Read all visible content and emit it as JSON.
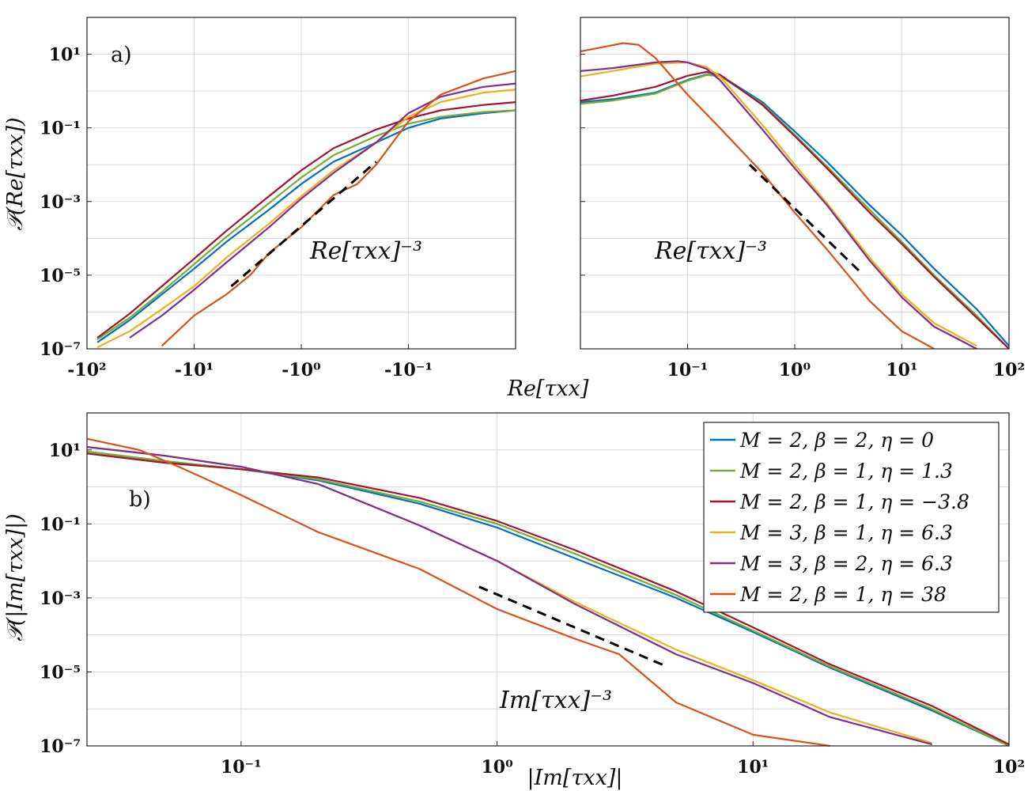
{
  "chart_data": [
    {
      "panel": "a-left",
      "type": "line",
      "panel_label": "a)",
      "ylabel": "𝒫(Re[τxx])",
      "xlabel": "Re[τxx]",
      "xscale": "log-negative",
      "yscale": "log",
      "xlim": [
        -100,
        -0.01
      ],
      "ylim": [
        1e-07,
        100
      ],
      "xticks": [
        "-10²",
        "-10¹",
        "-10⁰",
        "-10⁻¹"
      ],
      "yticks": [
        "10⁻⁷",
        "10⁻⁵",
        "10⁻³",
        "10⁻¹",
        "10¹"
      ],
      "grid": true,
      "annotation": "Re[τxx]⁻³",
      "reference_line": {
        "label": "Re[τxx]⁻³",
        "x": [
          -4.5,
          -0.2
        ],
        "y": [
          5e-06,
          0.012
        ]
      },
      "series": [
        {
          "name": "M=2, β=2, η=0",
          "x": [
            -80,
            -40,
            -20,
            -10,
            -5,
            -2,
            -1,
            -0.5,
            -0.2,
            -0.1,
            -0.05,
            -0.02,
            -0.01
          ],
          "y": [
            1.5e-07,
            6e-07,
            3e-06,
            1.5e-05,
            8e-05,
            0.0006,
            0.003,
            0.012,
            0.04,
            0.1,
            0.18,
            0.25,
            0.3
          ]
        },
        {
          "name": "M=2, β=1, η=1.3",
          "x": [
            -80,
            -40,
            -20,
            -10,
            -5,
            -2,
            -1,
            -0.5,
            -0.2,
            -0.1,
            -0.05,
            -0.02,
            -0.01
          ],
          "y": [
            1.8e-07,
            7e-07,
            3.5e-06,
            2e-05,
            0.00011,
            0.0009,
            0.0045,
            0.018,
            0.06,
            0.13,
            0.2,
            0.27,
            0.3
          ]
        },
        {
          "name": "M=2, β=1, η=−3.8",
          "x": [
            -80,
            -40,
            -20,
            -10,
            -5,
            -2,
            -1,
            -0.5,
            -0.2,
            -0.1,
            -0.05,
            -0.02,
            -0.01
          ],
          "y": [
            2e-07,
            9e-07,
            5e-06,
            2.8e-05,
            0.00016,
            0.0014,
            0.007,
            0.028,
            0.09,
            0.18,
            0.3,
            0.42,
            0.5
          ]
        },
        {
          "name": "M=3, β=1, η=6.3",
          "x": [
            -80,
            -40,
            -20,
            -10,
            -5,
            -2,
            -1,
            -0.5,
            -0.2,
            -0.1,
            -0.05,
            -0.02,
            -0.01
          ],
          "y": [
            1.1e-07,
            3e-07,
            1.2e-06,
            5e-06,
            3e-05,
            0.00025,
            0.0014,
            0.007,
            0.04,
            0.2,
            0.5,
            0.9,
            1.1
          ]
        },
        {
          "name": "M=3, β=2, η=6.3",
          "x": [
            -40,
            -20,
            -10,
            -5,
            -2,
            -1,
            -0.5,
            -0.2,
            -0.1,
            -0.05,
            -0.02,
            -0.01
          ],
          "y": [
            2e-07,
            8e-07,
            4e-06,
            2.2e-05,
            0.0002,
            0.0012,
            0.006,
            0.04,
            0.25,
            0.7,
            1.3,
            1.6
          ]
        },
        {
          "name": "M=2, β=1, η=38",
          "x": [
            -20,
            -10,
            -5,
            -3,
            -2,
            -1,
            -0.5,
            -0.3,
            -0.2,
            -0.1,
            -0.05,
            -0.02,
            -0.01
          ],
          "y": [
            1.2e-07,
            8e-07,
            3e-06,
            1e-05,
            4e-05,
            0.0002,
            0.0015,
            0.003,
            0.01,
            0.15,
            0.8,
            2.2,
            3.5
          ]
        }
      ]
    },
    {
      "panel": "a-right",
      "type": "line",
      "xscale": "log",
      "yscale": "log",
      "xlim": [
        0.01,
        100
      ],
      "ylim": [
        1e-07,
        100
      ],
      "xticks": [
        "10⁻¹",
        "10⁰",
        "10¹",
        "10²"
      ],
      "grid": true,
      "annotation": "Re[τxx]⁻³",
      "reference_line": {
        "label": "Re[τxx]⁻³",
        "x": [
          0.38,
          4.0
        ],
        "y": [
          0.01,
          1.3e-05
        ]
      },
      "series": [
        {
          "name": "M=2, β=2, η=0",
          "x": [
            0.01,
            0.02,
            0.05,
            0.1,
            0.15,
            0.2,
            0.5,
            1,
            2,
            5,
            10,
            20,
            50,
            100
          ],
          "y": [
            0.5,
            0.6,
            0.9,
            2.0,
            2.8,
            2.7,
            0.5,
            0.08,
            0.012,
            0.0008,
            0.00012,
            1.5e-05,
            1.2e-06,
            1.2e-07
          ]
        },
        {
          "name": "M=2, β=1, η=1.3",
          "x": [
            0.01,
            0.02,
            0.05,
            0.1,
            0.15,
            0.2,
            0.5,
            1,
            2,
            5,
            10,
            20,
            50,
            100
          ],
          "y": [
            0.45,
            0.55,
            0.85,
            1.9,
            2.7,
            2.6,
            0.45,
            0.065,
            0.009,
            0.0006,
            8e-05,
            1e-05,
            8e-07,
            1e-07
          ]
        },
        {
          "name": "M=2, β=1, η=−3.8",
          "x": [
            0.01,
            0.02,
            0.05,
            0.1,
            0.15,
            0.2,
            0.5,
            1,
            2,
            5,
            10,
            20,
            50,
            100
          ],
          "y": [
            0.55,
            0.75,
            1.3,
            2.6,
            3.3,
            2.8,
            0.42,
            0.06,
            0.008,
            0.0005,
            7e-05,
            9e-06,
            7e-07,
            1e-07
          ]
        },
        {
          "name": "M=3, β=1, η=6.3",
          "x": [
            0.01,
            0.02,
            0.05,
            0.1,
            0.15,
            0.2,
            0.5,
            1,
            2,
            5,
            10,
            20,
            50
          ],
          "y": [
            2.5,
            3.5,
            5.5,
            6,
            4.5,
            2.5,
            0.12,
            0.01,
            0.0009,
            3e-05,
            3e-06,
            5e-07,
            1.2e-07
          ]
        },
        {
          "name": "M=3, β=2, η=6.3",
          "x": [
            0.01,
            0.02,
            0.05,
            0.08,
            0.1,
            0.15,
            0.2,
            0.5,
            1,
            2,
            5,
            10,
            20,
            50
          ],
          "y": [
            3.5,
            4.2,
            6,
            6.5,
            6,
            4,
            2,
            0.09,
            0.008,
            0.0008,
            2.5e-05,
            2.5e-06,
            4e-07,
            1e-07
          ]
        },
        {
          "name": "M=2, β=1, η=38",
          "x": [
            0.01,
            0.015,
            0.025,
            0.035,
            0.05,
            0.1,
            0.2,
            0.5,
            1,
            2,
            5,
            10,
            20
          ],
          "y": [
            12,
            15,
            20,
            18,
            8,
            0.8,
            0.1,
            0.006,
            0.0005,
            5e-05,
            2e-06,
            3e-07,
            1e-07
          ]
        }
      ]
    },
    {
      "panel": "b",
      "type": "line",
      "panel_label": "b)",
      "ylabel": "𝒫(|Im[τxx]|)",
      "xlabel": "|Im[τxx]|",
      "xscale": "log",
      "yscale": "log",
      "xlim": [
        0.025,
        100
      ],
      "ylim": [
        1e-07,
        100
      ],
      "xticks": [
        "10⁻¹",
        "10⁰",
        "10¹",
        "10²"
      ],
      "yticks": [
        "10⁻⁷",
        "10⁻⁵",
        "10⁻³",
        "10⁻¹",
        "10¹"
      ],
      "grid": true,
      "annotation": "Im[τxx]⁻³",
      "legend_placement": "top-right",
      "reference_line": {
        "label": "Im[τxx]⁻³",
        "x": [
          0.85,
          4.6
        ],
        "y": [
          0.002,
          1.4e-05
        ]
      },
      "series": [
        {
          "name": "M=2, β=2, η=0",
          "x": [
            0.025,
            0.05,
            0.1,
            0.2,
            0.5,
            1,
            2,
            5,
            10,
            20,
            50,
            100
          ],
          "y": [
            9,
            5,
            3,
            1.5,
            0.35,
            0.08,
            0.012,
            0.001,
            0.00012,
            1.3e-05,
            9e-07,
            9e-08
          ]
        },
        {
          "name": "M=2, β=1, η=1.3",
          "x": [
            0.025,
            0.05,
            0.1,
            0.2,
            0.5,
            1,
            2,
            5,
            10,
            20,
            50,
            100
          ],
          "y": [
            9,
            5,
            3,
            1.6,
            0.4,
            0.1,
            0.016,
            0.0012,
            0.00013,
            1.4e-05,
            1e-06,
            1e-07
          ]
        },
        {
          "name": "M=2, β=1, η=−3.8",
          "x": [
            0.025,
            0.05,
            0.1,
            0.2,
            0.5,
            1,
            2,
            5,
            10,
            20,
            50,
            100
          ],
          "y": [
            8,
            4.5,
            3,
            1.8,
            0.5,
            0.12,
            0.02,
            0.0015,
            0.00016,
            1.6e-05,
            1.2e-06,
            1.1e-07
          ]
        },
        {
          "name": "M=3, β=1, η=6.3",
          "x": [
            0.025,
            0.05,
            0.1,
            0.2,
            0.5,
            1,
            2,
            5,
            10,
            20,
            50
          ],
          "y": [
            12,
            7,
            3.5,
            1.2,
            0.09,
            0.01,
            0.0008,
            4e-05,
            6e-06,
            8e-07,
            1.2e-07
          ]
        },
        {
          "name": "M=3, β=2, η=6.3",
          "x": [
            0.025,
            0.05,
            0.1,
            0.2,
            0.5,
            1,
            2,
            5,
            10,
            20,
            50
          ],
          "y": [
            12,
            7,
            3.5,
            1.2,
            0.09,
            0.01,
            0.0007,
            3e-05,
            5e-06,
            6e-07,
            1.1e-07
          ]
        },
        {
          "name": "M=2, β=1, η=38",
          "x": [
            0.025,
            0.04,
            0.06,
            0.1,
            0.2,
            0.5,
            1,
            2,
            3,
            5,
            10,
            20
          ],
          "y": [
            20,
            10,
            3,
            0.6,
            0.06,
            0.006,
            0.0005,
            8e-05,
            3e-05,
            1.5e-06,
            2e-07,
            1e-07
          ]
        }
      ]
    }
  ],
  "legend": {
    "entries": [
      {
        "label": "M = 2, β = 2, η = 0",
        "color": "#0072BD"
      },
      {
        "label": "M = 2, β = 1, η = 1.3",
        "color": "#77AC30"
      },
      {
        "label": "M = 2, β = 1, η = −3.8",
        "color": "#A2142F"
      },
      {
        "label": "M = 3, β = 1, η = 6.3",
        "color": "#EDB120"
      },
      {
        "label": "M = 3, β = 2, η = 6.3",
        "color": "#7E2F8E"
      },
      {
        "label": "M = 2, β = 1, η = 38",
        "color": "#D95319"
      }
    ]
  },
  "colors": [
    "#0072BD",
    "#77AC30",
    "#A2142F",
    "#EDB120",
    "#7E2F8E",
    "#D95319"
  ]
}
